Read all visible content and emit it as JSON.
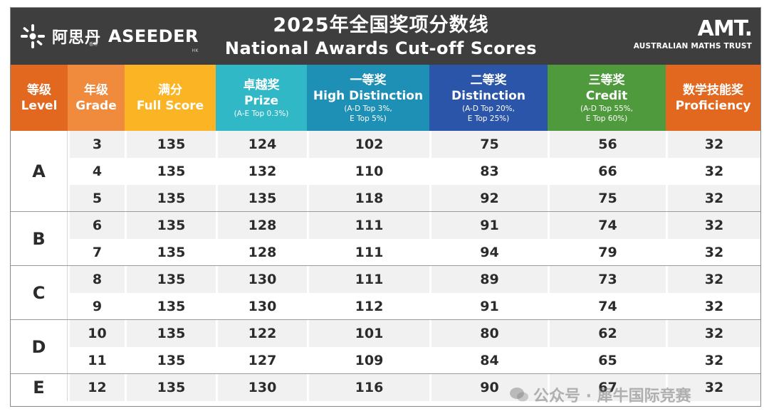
{
  "header": {
    "brand_cn": "阿思丹",
    "brand_en": "ASEEDER",
    "brand_hk": "HK",
    "brand_sub": "香港",
    "title_cn": "2025年全国奖项分数线",
    "title_en": "National Awards Cut-off Scores",
    "amt_logo": "AMT.",
    "amt_name": "AUSTRALIAN MATHS TRUST"
  },
  "columns": [
    {
      "cn": "等级",
      "en": "Level",
      "note": "",
      "color": "#e2681f"
    },
    {
      "cn": "年级",
      "en": "Grade",
      "note": "",
      "color": "#f08a3c"
    },
    {
      "cn": "满分",
      "en": "Full Score",
      "note": "",
      "color": "#fbb423"
    },
    {
      "cn": "卓越奖",
      "en": "Prize",
      "note": "(A-E Top 0.3%)",
      "color": "#31b8c6"
    },
    {
      "cn": "一等奖",
      "en": "High Distinction",
      "note": "(A-D Top 3%,",
      "note2": "E Top 5%)",
      "color": "#1e8fb5"
    },
    {
      "cn": "二等奖",
      "en": "Distinction",
      "note": "(A-D Top 20%,",
      "note2": "E Top 25%)",
      "color": "#2b55a8"
    },
    {
      "cn": "三等奖",
      "en": "Credit",
      "note": "(A-D Top 55%,",
      "note2": "E Top 60%)",
      "color": "#4f9a3d"
    },
    {
      "cn": "数学技能奖",
      "en": "Proficiency",
      "note": "",
      "color": "#e2681f"
    }
  ],
  "groups": [
    {
      "level": "A",
      "rows": [
        {
          "grade": "3",
          "full": "135",
          "prize": "124",
          "hd": "102",
          "d": "75",
          "credit": "56",
          "prof": "32"
        },
        {
          "grade": "4",
          "full": "135",
          "prize": "132",
          "hd": "110",
          "d": "83",
          "credit": "66",
          "prof": "32"
        },
        {
          "grade": "5",
          "full": "135",
          "prize": "135",
          "hd": "118",
          "d": "92",
          "credit": "75",
          "prof": "32"
        }
      ]
    },
    {
      "level": "B",
      "rows": [
        {
          "grade": "6",
          "full": "135",
          "prize": "128",
          "hd": "111",
          "d": "91",
          "credit": "74",
          "prof": "32"
        },
        {
          "grade": "7",
          "full": "135",
          "prize": "128",
          "hd": "111",
          "d": "94",
          "credit": "79",
          "prof": "32"
        }
      ]
    },
    {
      "level": "C",
      "rows": [
        {
          "grade": "8",
          "full": "135",
          "prize": "130",
          "hd": "111",
          "d": "89",
          "credit": "73",
          "prof": "32"
        },
        {
          "grade": "9",
          "full": "135",
          "prize": "130",
          "hd": "112",
          "d": "91",
          "credit": "74",
          "prof": "32"
        }
      ]
    },
    {
      "level": "D",
      "rows": [
        {
          "grade": "10",
          "full": "135",
          "prize": "122",
          "hd": "101",
          "d": "80",
          "credit": "62",
          "prof": "32"
        },
        {
          "grade": "11",
          "full": "135",
          "prize": "127",
          "hd": "109",
          "d": "84",
          "credit": "65",
          "prof": "32"
        }
      ]
    },
    {
      "level": "E",
      "rows": [
        {
          "grade": "12",
          "full": "135",
          "prize": "130",
          "hd": "116",
          "d": "90",
          "credit": "67",
          "prof": "32"
        }
      ]
    }
  ],
  "watermark": {
    "text": "公众号 · 犀牛国际竞赛"
  }
}
